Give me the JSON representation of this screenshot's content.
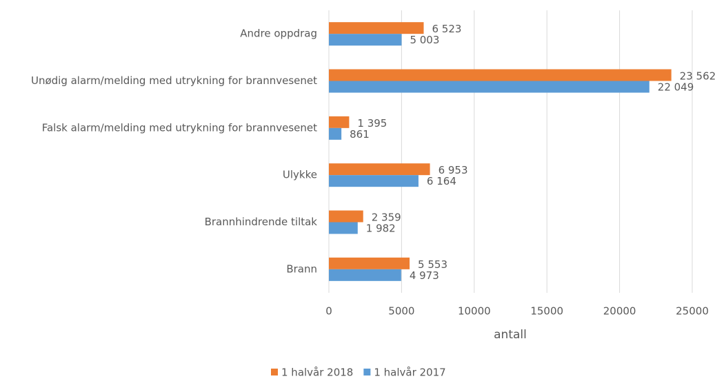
{
  "chart_data": {
    "type": "bar",
    "orientation": "horizontal",
    "categories": [
      "Andre oppdrag",
      "Unødig alarm/melding med utrykning for brannvesenet",
      "Falsk alarm/melding med utrykning for brannvesenet",
      "Ulykke",
      "Brannhindrende tiltak",
      "Brann"
    ],
    "series": [
      {
        "name": "1 halvår 2018",
        "color": "#ed7d31",
        "values": [
          6523,
          23562,
          1395,
          6953,
          2359,
          5553
        ],
        "value_labels": [
          "6 523",
          "23 562",
          "1 395",
          "6 953",
          "2 359",
          "5 553"
        ]
      },
      {
        "name": "1 halvår 2017",
        "color": "#5b9bd5",
        "values": [
          5003,
          22049,
          861,
          6164,
          1982,
          4973
        ],
        "value_labels": [
          "5 003",
          "22 049",
          "861",
          "6 164",
          "1 982",
          "4 973"
        ]
      }
    ],
    "xlabel": "antall",
    "xlim": [
      0,
      25000
    ],
    "xticks": [
      0,
      5000,
      10000,
      15000,
      20000,
      25000
    ],
    "grid": true,
    "legend": "bottom"
  }
}
